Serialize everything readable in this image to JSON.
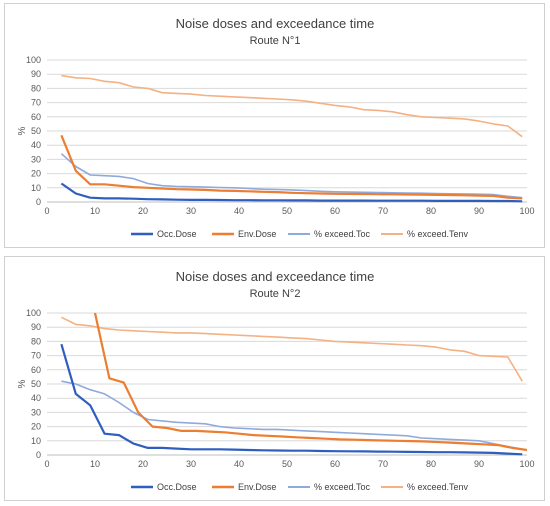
{
  "colors": {
    "occ": "#2e5fbf",
    "env": "#ed7d31",
    "toc": "#8faadc",
    "tenv": "#f4b183"
  },
  "chart_data": [
    {
      "type": "line",
      "title": "Noise doses and exceedance time",
      "subtitle": "Route N°1",
      "ylabel": "%",
      "xlabel": "",
      "xlim": [
        0,
        100
      ],
      "ylim": [
        0,
        100
      ],
      "xticks": [
        0,
        10,
        20,
        30,
        40,
        50,
        60,
        70,
        80,
        90,
        100
      ],
      "yticks": [
        0,
        10,
        20,
        30,
        40,
        50,
        60,
        70,
        80,
        90,
        100
      ],
      "grid": true,
      "legend": "bottom",
      "x": [
        3,
        6,
        9,
        12,
        15,
        18,
        21,
        24,
        27,
        30,
        33,
        36,
        39,
        42,
        45,
        48,
        51,
        54,
        57,
        60,
        63,
        66,
        69,
        72,
        75,
        78,
        81,
        84,
        87,
        90,
        93,
        96,
        99
      ],
      "series": [
        {
          "name": "Occ.Dose",
          "color": "occ",
          "width": 2.2,
          "values": [
            13,
            6,
            3,
            2.5,
            2.5,
            2.3,
            2,
            1.8,
            1.6,
            1.5,
            1.5,
            1.4,
            1.3,
            1.3,
            1.2,
            1.2,
            1.1,
            1.1,
            1,
            1,
            1,
            1,
            0.9,
            0.9,
            0.9,
            0.9,
            0.8,
            0.8,
            0.8,
            0.8,
            0.7,
            0.7,
            0.5
          ]
        },
        {
          "name": "Env.Dose",
          "color": "env",
          "width": 2.2,
          "values": [
            47,
            22,
            12.5,
            12.5,
            11.5,
            10.5,
            10,
            9.5,
            9,
            8.8,
            8.5,
            8,
            7.8,
            7.5,
            7.2,
            7,
            6.5,
            6.2,
            6,
            5.8,
            5.7,
            5.6,
            5.5,
            5.4,
            5.3,
            5.2,
            5,
            4.9,
            4.7,
            4.5,
            4.3,
            3,
            2.5
          ]
        },
        {
          "name": "% exceed.Toc",
          "color": "toc",
          "width": 1.6,
          "values": [
            34,
            25,
            19,
            18.5,
            18,
            16.5,
            13,
            11.5,
            11,
            10.8,
            10.5,
            10.2,
            10,
            9.5,
            9,
            8.8,
            8.5,
            8,
            7.5,
            7.2,
            7,
            6.8,
            6.7,
            6.5,
            6.3,
            6.2,
            6,
            5.8,
            5.7,
            5.5,
            5.3,
            4,
            3
          ]
        },
        {
          "name": "% exceed.Tenv",
          "color": "tenv",
          "width": 1.6,
          "values": [
            89,
            87.5,
            87,
            85,
            84,
            81,
            80,
            77,
            76.5,
            76,
            75,
            74.5,
            74,
            73.5,
            73,
            72.5,
            72,
            71,
            69.5,
            68,
            67,
            65,
            64.5,
            63.5,
            61.5,
            60,
            59.5,
            59,
            58.5,
            57,
            55,
            53.5,
            46
          ]
        }
      ]
    },
    {
      "type": "line",
      "title": "Noise doses and exceedance time",
      "subtitle": "Route N°2",
      "ylabel": "%",
      "xlabel": "",
      "xlim": [
        0,
        100
      ],
      "ylim": [
        0,
        100
      ],
      "xticks": [
        0,
        10,
        20,
        30,
        40,
        50,
        60,
        70,
        80,
        90,
        100
      ],
      "yticks": [
        0,
        10,
        20,
        30,
        40,
        50,
        60,
        70,
        80,
        90,
        100
      ],
      "grid": true,
      "legend": "bottom",
      "series": [
        {
          "name": "Occ.Dose",
          "color": "occ",
          "width": 2.2,
          "x": [
            3,
            6,
            9,
            12,
            15,
            18,
            21,
            24,
            27,
            30,
            33,
            36,
            39,
            42,
            45,
            48,
            51,
            54,
            57,
            60,
            63,
            66,
            69,
            72,
            75,
            78,
            81,
            84,
            87,
            90,
            93,
            96,
            99
          ],
          "values": [
            78,
            43,
            35,
            15,
            14,
            8,
            5,
            5,
            4.5,
            4,
            4,
            4,
            3.8,
            3.5,
            3.3,
            3.2,
            3,
            3,
            2.8,
            2.7,
            2.6,
            2.5,
            2.4,
            2.3,
            2.2,
            2.1,
            2,
            2,
            1.8,
            1.7,
            1.5,
            1,
            0.5
          ]
        },
        {
          "name": "Env.Dose",
          "color": "env",
          "width": 2.2,
          "x": [
            10,
            13,
            16,
            19,
            22,
            25,
            28,
            31,
            34,
            37,
            40,
            43,
            46,
            49,
            52,
            55,
            58,
            61,
            64,
            67,
            70,
            73,
            76,
            79,
            82,
            85,
            88,
            91,
            94,
            97,
            100
          ],
          "values": [
            100,
            54,
            51,
            30,
            20,
            19,
            17,
            17,
            16.5,
            16,
            15,
            14,
            13.5,
            13,
            12.5,
            12,
            11.5,
            11,
            10.8,
            10.5,
            10.2,
            10,
            9.8,
            9.5,
            9,
            8.5,
            8,
            7.5,
            7,
            5,
            3.5
          ]
        },
        {
          "name": "% exceed.Toc",
          "color": "toc",
          "width": 1.6,
          "x": [
            3,
            6,
            9,
            12,
            15,
            18,
            21,
            24,
            27,
            30,
            33,
            36,
            39,
            42,
            45,
            48,
            51,
            54,
            57,
            60,
            63,
            66,
            69,
            72,
            75,
            78,
            81,
            84,
            87,
            90,
            93,
            96,
            99
          ],
          "values": [
            52,
            50,
            46,
            43,
            37,
            30,
            25,
            24,
            23,
            22.5,
            22,
            20,
            19,
            18.5,
            18,
            18,
            17.5,
            17,
            16.5,
            16,
            15.5,
            15,
            14.5,
            14,
            13.5,
            12,
            11.5,
            11,
            10.5,
            10,
            8,
            6,
            4
          ]
        },
        {
          "name": "% exceed.Tenv",
          "color": "tenv",
          "width": 1.6,
          "x": [
            3,
            6,
            9,
            12,
            15,
            18,
            21,
            24,
            27,
            30,
            33,
            36,
            39,
            42,
            45,
            48,
            51,
            54,
            57,
            60,
            63,
            66,
            69,
            72,
            75,
            78,
            81,
            84,
            87,
            90,
            93,
            96,
            99
          ],
          "values": [
            97,
            92,
            91,
            89,
            88,
            87.5,
            87,
            86.5,
            86,
            86,
            85.5,
            85,
            84.5,
            84,
            83.5,
            83,
            82.5,
            82,
            81,
            80,
            79.5,
            79,
            78.5,
            78,
            77.5,
            77,
            76,
            74,
            73,
            70,
            69.5,
            69,
            52
          ]
        }
      ]
    }
  ]
}
